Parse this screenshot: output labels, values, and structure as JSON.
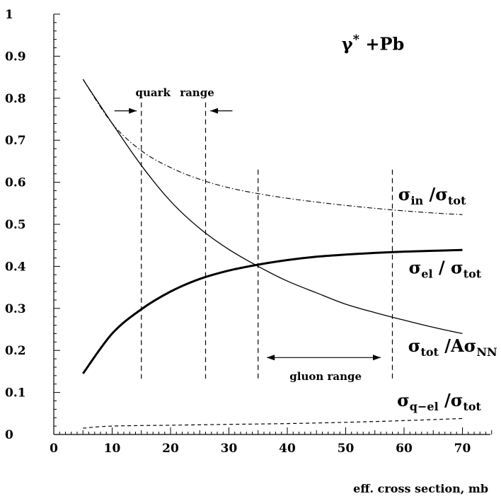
{
  "chart_data": {
    "type": "line",
    "title": "γ* +Pb",
    "title_base": "γ",
    "title_sup": "*",
    "title_suffix": " +Pb",
    "xlabel": "eff. cross section, mb",
    "ylabel": "",
    "xlim": [
      0,
      75
    ],
    "ylim": [
      0,
      1
    ],
    "x_ticks": [
      0,
      10,
      20,
      30,
      40,
      50,
      60,
      70
    ],
    "y_ticks": [
      0,
      0.1,
      0.2,
      0.3,
      0.4,
      0.5,
      0.6,
      0.7,
      0.8,
      0.9,
      1
    ],
    "y_tick_labels": [
      "0",
      "0.1",
      "0.2",
      "0.3",
      "0.4",
      "0.5",
      "0.6",
      "0.7",
      "0.8",
      "0.9",
      "1"
    ],
    "series": [
      {
        "name": "σin/σtot",
        "style": "dashdot",
        "x": [
          5,
          10,
          15,
          20,
          25,
          30,
          35,
          40,
          45,
          50,
          55,
          60,
          65,
          70
        ],
        "y": [
          0.845,
          0.74,
          0.675,
          0.635,
          0.607,
          0.587,
          0.573,
          0.562,
          0.553,
          0.545,
          0.538,
          0.532,
          0.527,
          0.523
        ]
      },
      {
        "name": "σel/σtot",
        "style": "thick",
        "x": [
          5,
          10,
          15,
          20,
          25,
          30,
          35,
          40,
          45,
          50,
          55,
          60,
          65,
          70
        ],
        "y": [
          0.145,
          0.24,
          0.298,
          0.34,
          0.37,
          0.39,
          0.404,
          0.415,
          0.423,
          0.428,
          0.432,
          0.435,
          0.437,
          0.439
        ]
      },
      {
        "name": "σtot/AσNN",
        "style": "thin",
        "x": [
          5,
          10,
          15,
          20,
          25,
          30,
          35,
          40,
          45,
          50,
          55,
          60,
          65,
          70
        ],
        "y": [
          0.845,
          0.74,
          0.64,
          0.555,
          0.49,
          0.44,
          0.4,
          0.365,
          0.337,
          0.31,
          0.29,
          0.272,
          0.255,
          0.24
        ]
      },
      {
        "name": "σq−el/σtot",
        "style": "dashed",
        "x": [
          5,
          10,
          20,
          30,
          40,
          50,
          60,
          70
        ],
        "y": [
          0.015,
          0.02,
          0.022,
          0.024,
          0.026,
          0.029,
          0.033,
          0.038
        ]
      }
    ],
    "vertical_lines": [
      {
        "x": 15,
        "y_from": 0.133,
        "y_to": 0.79
      },
      {
        "x": 26,
        "y_from": 0.133,
        "y_to": 0.79
      },
      {
        "x": 35,
        "y_from": 0.133,
        "y_to": 0.63
      },
      {
        "x": 58,
        "y_from": 0.133,
        "y_to": 0.63
      }
    ],
    "annotations": {
      "quark_range": {
        "label_left": "quark",
        "label_right": "range"
      },
      "gluon_range": {
        "label": "gluon range",
        "x_from": 36.5,
        "x_to": 56,
        "y": 0.183
      }
    },
    "labels": {
      "sigma_in": {
        "main": "σ",
        "sub1": "in",
        "mid": " /σ",
        "sub2": "tot"
      },
      "sigma_el": {
        "main": "σ",
        "sub1": "el",
        "mid": " / σ",
        "sub2": "tot"
      },
      "sigma_tot": {
        "main": "σ",
        "sub1": "tot",
        "mid": " /Aσ",
        "sub2": "NN"
      },
      "sigma_qel": {
        "main": "σ",
        "sub1": "q−el",
        "mid": " /σ",
        "sub2": "tot"
      }
    }
  }
}
